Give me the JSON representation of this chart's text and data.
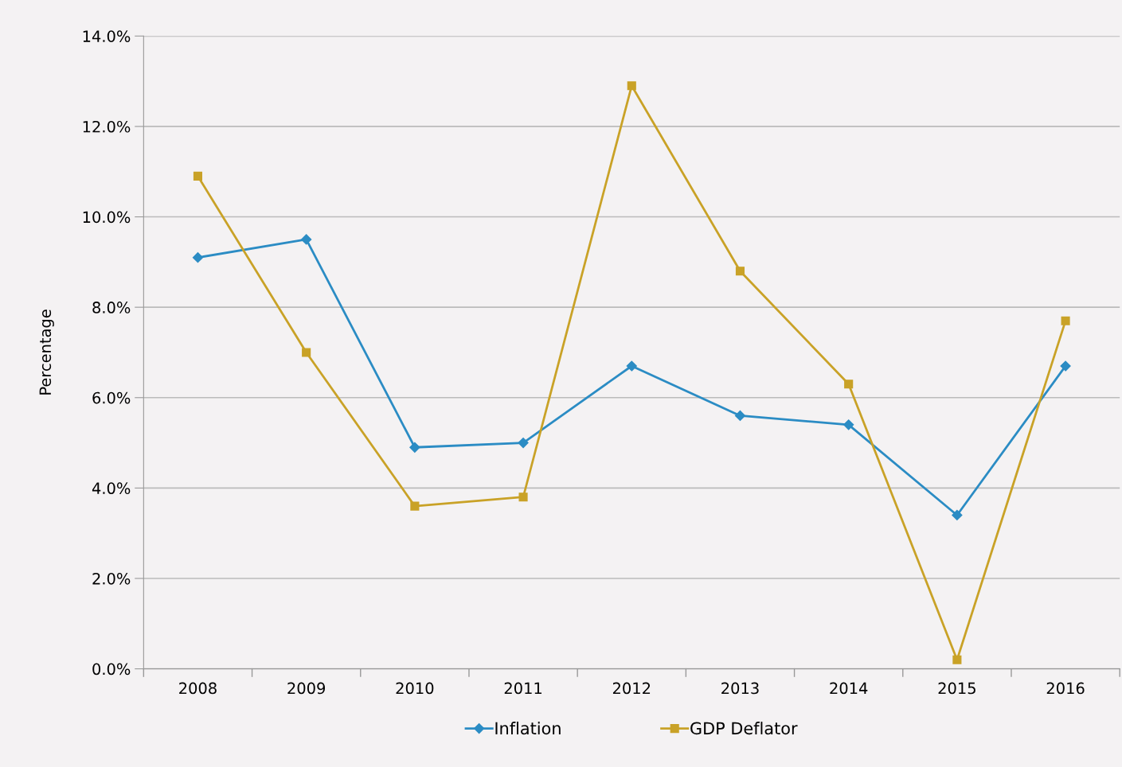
{
  "chart_data": {
    "type": "line",
    "ylabel": "Percentage",
    "categories": [
      "2008",
      "2009",
      "2010",
      "2011",
      "2012",
      "2013",
      "2014",
      "2015",
      "2016"
    ],
    "series": [
      {
        "name": "Inflation",
        "color": "#2b8cc4",
        "marker": "diamond",
        "values": [
          9.1,
          9.5,
          4.9,
          5.0,
          6.7,
          5.6,
          5.4,
          3.4,
          6.7
        ]
      },
      {
        "name": "GDP Deflator",
        "color": "#c9a227",
        "marker": "square",
        "values": [
          10.9,
          7.0,
          3.6,
          3.8,
          12.9,
          8.8,
          6.3,
          0.2,
          7.7
        ]
      }
    ],
    "ylim": [
      0,
      14
    ],
    "yticks": [
      {
        "value": 0,
        "label": "0.0%"
      },
      {
        "value": 2,
        "label": "2.0%"
      },
      {
        "value": 4,
        "label": "4.0%"
      },
      {
        "value": 6,
        "label": "6.0%"
      },
      {
        "value": 8,
        "label": "8.0%"
      },
      {
        "value": 10,
        "label": "10.0%"
      },
      {
        "value": 12,
        "label": "12.0%"
      },
      {
        "value": 14,
        "label": "14.0%"
      }
    ],
    "grid": "y",
    "legend": "bottom",
    "line_style": "solid"
  }
}
